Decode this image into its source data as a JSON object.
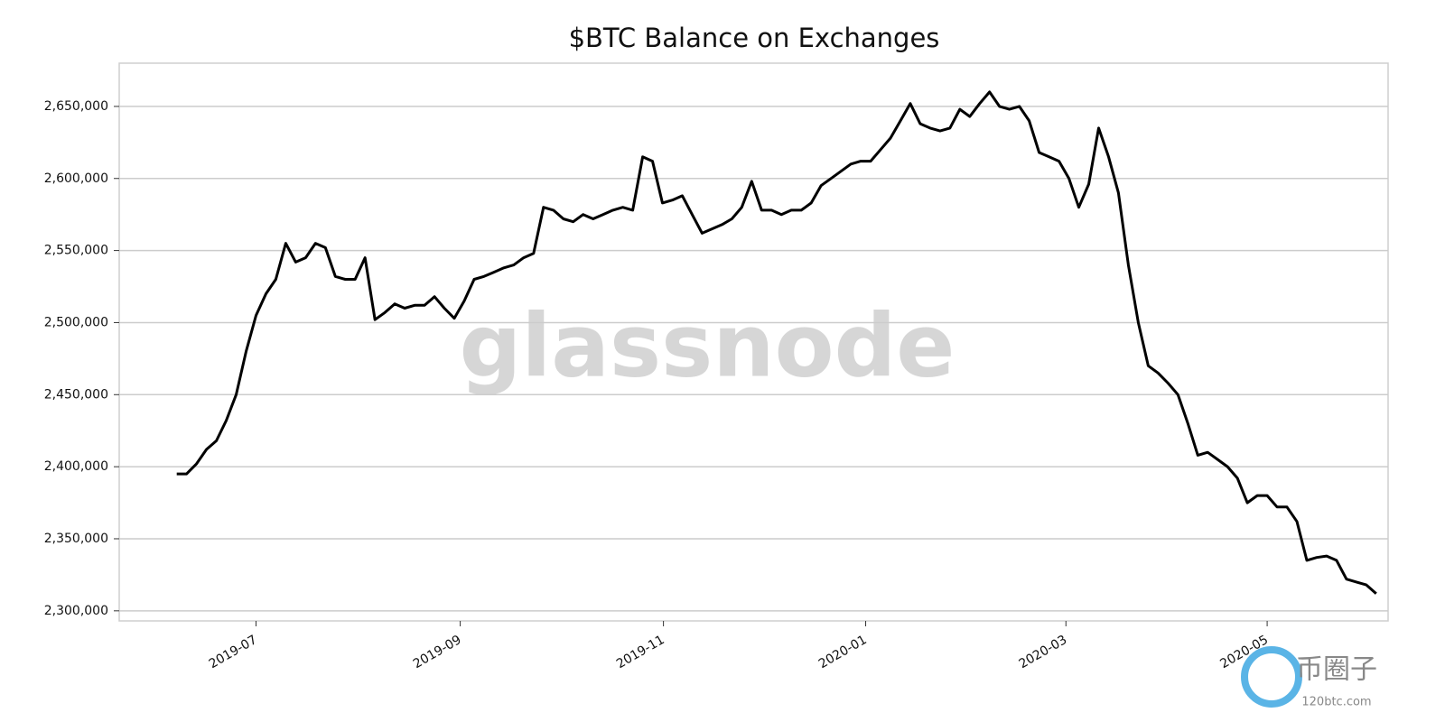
{
  "chart_data": {
    "type": "line",
    "title": "$BTC Balance on Exchanges",
    "watermark": "glassnode",
    "corner_logo": {
      "name": "币圈子",
      "site": "120btc.com"
    },
    "series": [
      {
        "color": "#000000",
        "values": [
          2395000,
          2395000,
          2402000,
          2412000,
          2418000,
          2432000,
          2450000,
          2480000,
          2505000,
          2520000,
          2530000,
          2555000,
          2542000,
          2545000,
          2555000,
          2552000,
          2532000,
          2530000,
          2530000,
          2545000,
          2502000,
          2507000,
          2513000,
          2510000,
          2512000,
          2512000,
          2518000,
          2510000,
          2503000,
          2515000,
          2530000,
          2532000,
          2535000,
          2538000,
          2540000,
          2545000,
          2548000,
          2580000,
          2578000,
          2572000,
          2570000,
          2575000,
          2572000,
          2575000,
          2578000,
          2580000,
          2578000,
          2615000,
          2612000,
          2583000,
          2585000,
          2588000,
          2575000,
          2562000,
          2565000,
          2568000,
          2572000,
          2580000,
          2598000,
          2578000,
          2578000,
          2575000,
          2578000,
          2578000,
          2583000,
          2595000,
          2600000,
          2605000,
          2610000,
          2612000,
          2612000,
          2620000,
          2628000,
          2640000,
          2652000,
          2638000,
          2635000,
          2633000,
          2635000,
          2648000,
          2643000,
          2652000,
          2660000,
          2650000,
          2648000,
          2650000,
          2640000,
          2618000,
          2615000,
          2612000,
          2600000,
          2580000,
          2596000,
          2635000,
          2615000,
          2590000,
          2540000,
          2500000,
          2470000,
          2465000,
          2458000,
          2450000,
          2430000,
          2408000,
          2410000,
          2405000,
          2400000,
          2392000,
          2375000,
          2380000,
          2380000,
          2372000,
          2372000,
          2362000,
          2335000,
          2337000,
          2338000,
          2335000,
          2322000,
          2320000,
          2318000,
          2312000
        ]
      }
    ],
    "xlim": [
      -5.8,
      122.2
    ],
    "xticks": [
      {
        "value": 8.0,
        "label": "2019-07"
      },
      {
        "value": 28.6,
        "label": "2019-09"
      },
      {
        "value": 49.1,
        "label": "2019-11"
      },
      {
        "value": 69.5,
        "label": "2020-01"
      },
      {
        "value": 89.7,
        "label": "2020-03"
      },
      {
        "value": 110.0,
        "label": "2020-05"
      }
    ],
    "ylim": [
      2293000,
      2680000
    ],
    "yticks": [
      {
        "value": 2300000,
        "label": "2,300,000"
      },
      {
        "value": 2350000,
        "label": "2,350,000"
      },
      {
        "value": 2400000,
        "label": "2,400,000"
      },
      {
        "value": 2450000,
        "label": "2,450,000"
      },
      {
        "value": 2500000,
        "label": "2,500,000"
      },
      {
        "value": 2550000,
        "label": "2,550,000"
      },
      {
        "value": 2600000,
        "label": "2,600,000"
      },
      {
        "value": 2650000,
        "label": "2,650,000"
      }
    ],
    "grid": true
  }
}
